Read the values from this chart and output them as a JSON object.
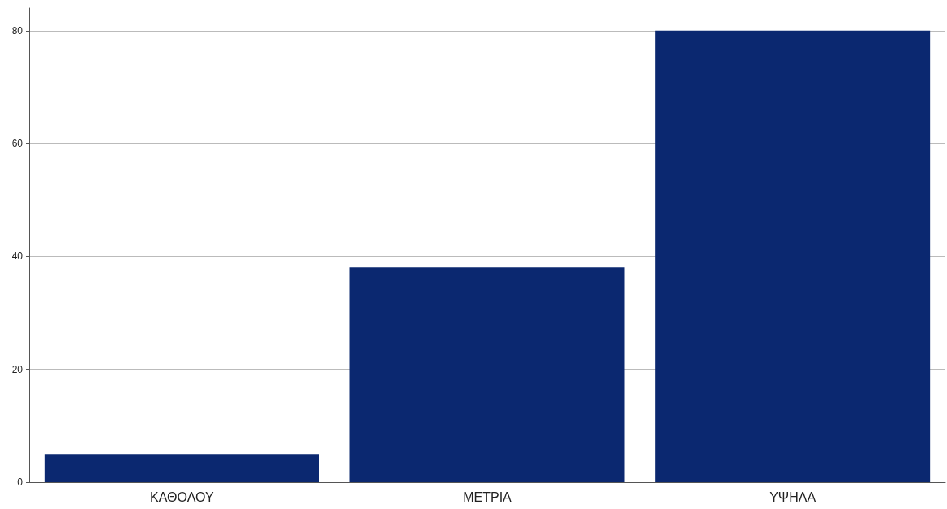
{
  "chart_data": {
    "type": "bar",
    "categories": [
      "ΚΑΘΟΛΟΥ",
      "ΜΕΤΡΙΑ",
      "ΥΨΗΛΑ"
    ],
    "values": [
      5,
      38,
      80
    ],
    "color": "#0b2870",
    "ylim": [
      0,
      84
    ],
    "yticks": [
      0,
      20,
      40,
      60,
      80
    ],
    "grid": "y"
  }
}
